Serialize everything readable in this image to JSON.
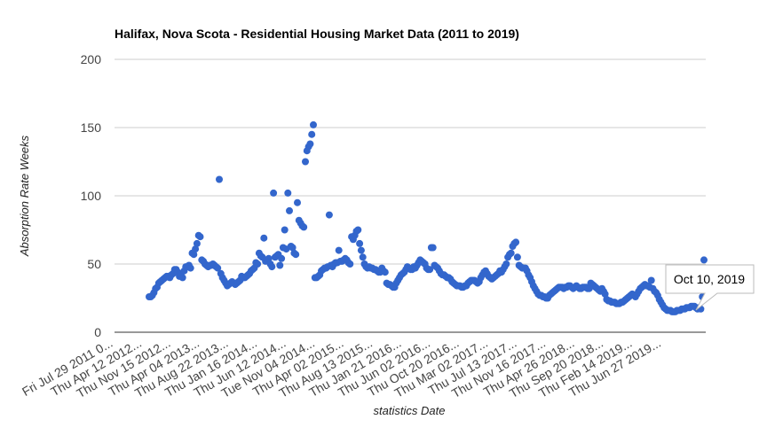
{
  "chart_data": {
    "type": "scatter",
    "title": "Halifax, Nova Scota - Residential Housing Market Data (2011 to 2019)",
    "xlabel": "statistics Date",
    "ylabel": "Absorption Rate Weeks",
    "ylim": [
      0,
      200
    ],
    "y_ticks": [
      "0",
      "50",
      "100",
      "150",
      "200"
    ],
    "x_tick_labels": [
      "Fri Jul 29 2011 0...",
      "Thu Apr 12 2012...",
      "Thu Nov 15 2012...",
      "Thu Apr 04 2013...",
      "Thu Aug 22 2013...",
      "Thu Jan 16 2014...",
      "Thu Jun 12 2014...",
      "Tue Nov 04 2014...",
      "Thu Apr 02 2015...",
      "Thu Aug 13 2015...",
      "Thu Jan 21 2016...",
      "Thu Jun 02 2016...",
      "Thu Oct 20 2016...",
      "Thu Mar 02 2017...",
      "Thu Jul 13 2017...",
      "Thu Nov 16 2017...",
      "Thu Apr 26 2018...",
      "Thu Sep 20 2018...",
      "Thu Feb 14 2019...",
      "Thu Jun 27 2019..."
    ],
    "grid": true,
    "legend": "none",
    "point_color": "#3366cc",
    "tooltip": "Oct 10, 2019",
    "series": [
      {
        "values": [
          26,
          26,
          27,
          29,
          32,
          33,
          36,
          37,
          38,
          39,
          40,
          41,
          41,
          40,
          42,
          43,
          46,
          46,
          44,
          41,
          43,
          40,
          45,
          48,
          48,
          49,
          47,
          58,
          57,
          61,
          65,
          71,
          70,
          53,
          52,
          50,
          49,
          48,
          49,
          49,
          50,
          49,
          48,
          47,
          112,
          43,
          40,
          38,
          36,
          34,
          35,
          36,
          37,
          36,
          35,
          36,
          37,
          38,
          41,
          40,
          40,
          41,
          42,
          43,
          45,
          46,
          47,
          51,
          50,
          58,
          56,
          55,
          69,
          52,
          53,
          54,
          50,
          48,
          102,
          55,
          56,
          57,
          49,
          54,
          62,
          75,
          61,
          102,
          89,
          63,
          62,
          58,
          57,
          95,
          82,
          80,
          78,
          77,
          125,
          133,
          136,
          138,
          145,
          152,
          40,
          40,
          41,
          42,
          45,
          46,
          47,
          47,
          48,
          86,
          49,
          48,
          50,
          51,
          51,
          60,
          52,
          52,
          53,
          54,
          53,
          51,
          50,
          70,
          68,
          71,
          74,
          75,
          65,
          60,
          55,
          50,
          48,
          47,
          48,
          47,
          47,
          46,
          46,
          45,
          44,
          44,
          47,
          45,
          44,
          36,
          35,
          35,
          34,
          33,
          33,
          36,
          38,
          40,
          42,
          43,
          44,
          46,
          48,
          47,
          46,
          46,
          48,
          47,
          49,
          51,
          53,
          52,
          51,
          50,
          47,
          46,
          46,
          62,
          62,
          49,
          48,
          47,
          45,
          43,
          42,
          42,
          41,
          40,
          40,
          39,
          37,
          36,
          35,
          34,
          34,
          34,
          33,
          33,
          34,
          34,
          36,
          37,
          38,
          38,
          38,
          37,
          36,
          37,
          40,
          42,
          44,
          45,
          43,
          41,
          40,
          39,
          40,
          41,
          42,
          43,
          45,
          44,
          46,
          48,
          50,
          55,
          57,
          58,
          63,
          65,
          66,
          55,
          49,
          48,
          47,
          47,
          47,
          45,
          42,
          40,
          37,
          34,
          32,
          30,
          28,
          27,
          27,
          26,
          26,
          25,
          25,
          27,
          28,
          29,
          30,
          31,
          32,
          33,
          33,
          33,
          32,
          33,
          33,
          34,
          34,
          33,
          32,
          33,
          34,
          33,
          32,
          32,
          33,
          33,
          33,
          32,
          32,
          36,
          35,
          34,
          33,
          32,
          31,
          30,
          32,
          30,
          28,
          24,
          23,
          23,
          22,
          22,
          22,
          21,
          21,
          21,
          22,
          22,
          23,
          24,
          25,
          26,
          27,
          28,
          27,
          26,
          28,
          30,
          32,
          33,
          34,
          35,
          34,
          34,
          33,
          38,
          32,
          30,
          29,
          27,
          24,
          22,
          20,
          18,
          17,
          16,
          16,
          16,
          15,
          15,
          15,
          16,
          16,
          16,
          17,
          17,
          17,
          18,
          18,
          18,
          19,
          19,
          19,
          18,
          17,
          18,
          17,
          26,
          53
        ]
      }
    ]
  }
}
